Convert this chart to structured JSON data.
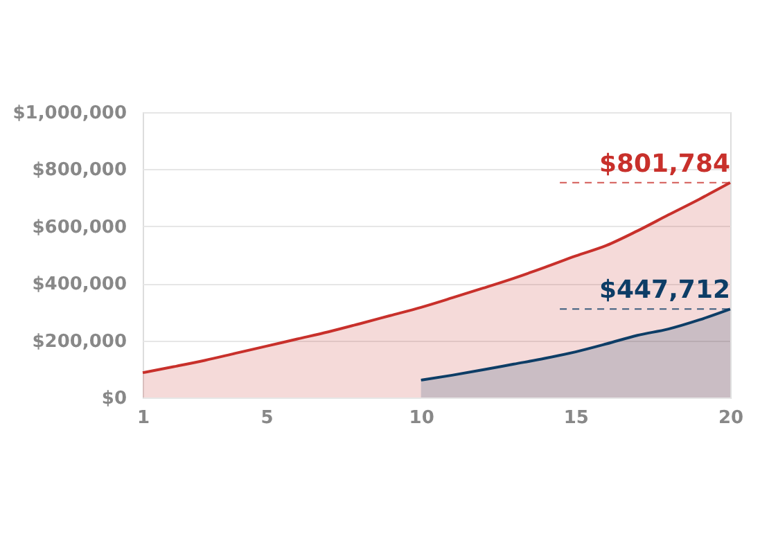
{
  "chart_data": {
    "type": "area",
    "ylim": [
      0,
      1000000
    ],
    "yticks": [
      {
        "value": 0,
        "label": "$0"
      },
      {
        "value": 200000,
        "label": "$200,000"
      },
      {
        "value": 400000,
        "label": "$400,000"
      },
      {
        "value": 600000,
        "label": "$600,000"
      },
      {
        "value": 800000,
        "label": "$800,000"
      },
      {
        "value": 1000000,
        "label": "$1,000,000"
      }
    ],
    "xlim": [
      1,
      20
    ],
    "xticks": [
      1,
      5,
      10,
      15,
      20
    ],
    "grid": "y",
    "marker": "none",
    "line_style": "solid",
    "series": [
      {
        "color": "#c8302b",
        "x": [
          1,
          2,
          3,
          4,
          5,
          6,
          7,
          8,
          9,
          10,
          11,
          12,
          13,
          14,
          15,
          16,
          17,
          18,
          19,
          20
        ],
        "values": [
          87000,
          108000,
          130000,
          155000,
          180000,
          205000,
          230000,
          258000,
          287000,
          316000,
          349000,
          383000,
          418000,
          456000,
          496000,
          533000,
          584000,
          640000,
          695000,
          753000
        ]
      },
      {
        "color": "#0d3d66",
        "x": [
          10,
          11,
          12,
          13,
          14,
          15,
          16,
          17,
          18,
          19,
          20
        ],
        "values": [
          61000,
          78000,
          97000,
          117000,
          137000,
          160000,
          188000,
          218000,
          240000,
          272000,
          310000
        ]
      }
    ],
    "annotations": [
      "$801,784",
      "$447,712"
    ]
  }
}
